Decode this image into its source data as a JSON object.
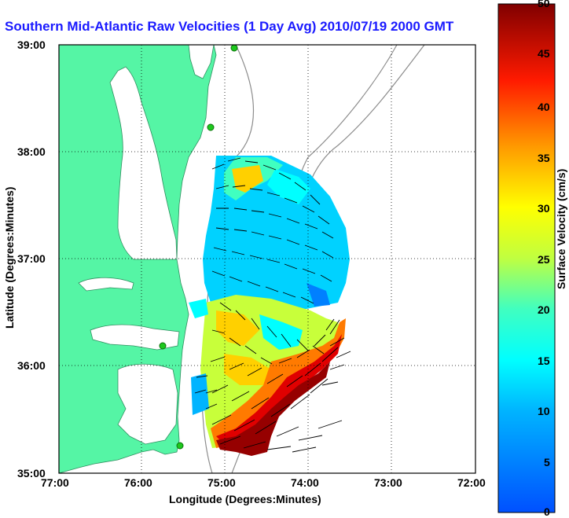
{
  "title": "Southern Mid-Atlantic Raw Velocities (1 Day Avg) 2010/07/19 2000 GMT",
  "map": {
    "xlabel": "Longitude (Degrees:Minutes)",
    "ylabel": "Latitude (Degrees:Minutes)",
    "x_ticks": [
      "77:00",
      "76:00",
      "75:00",
      "74:00",
      "73:00",
      "72:00"
    ],
    "y_ticks": [
      "39:00",
      "38:00",
      "37:00",
      "36:00",
      "35:00"
    ],
    "land_color": "#55f5a5",
    "grid": "dotted"
  },
  "colorbar": {
    "label": "Surface Velocity (cm/s)",
    "ticks": [
      "50",
      "45",
      "40",
      "35",
      "30",
      "25",
      "20",
      "15",
      "10",
      "5",
      "0"
    ],
    "range": [
      0,
      50
    ]
  },
  "chart_data": {
    "type": "heatmap",
    "title": "Southern Mid-Atlantic Raw Velocities (1 Day Avg) 2010/07/19 2000 GMT",
    "xlabel": "Longitude (Degrees:Minutes)",
    "ylabel": "Latitude (Degrees:Minutes)",
    "xlim": [
      -77,
      -72
    ],
    "ylim": [
      35,
      39
    ],
    "colorbar_label": "Surface Velocity (cm/s)",
    "colorbar_range": [
      0,
      50
    ]
  }
}
